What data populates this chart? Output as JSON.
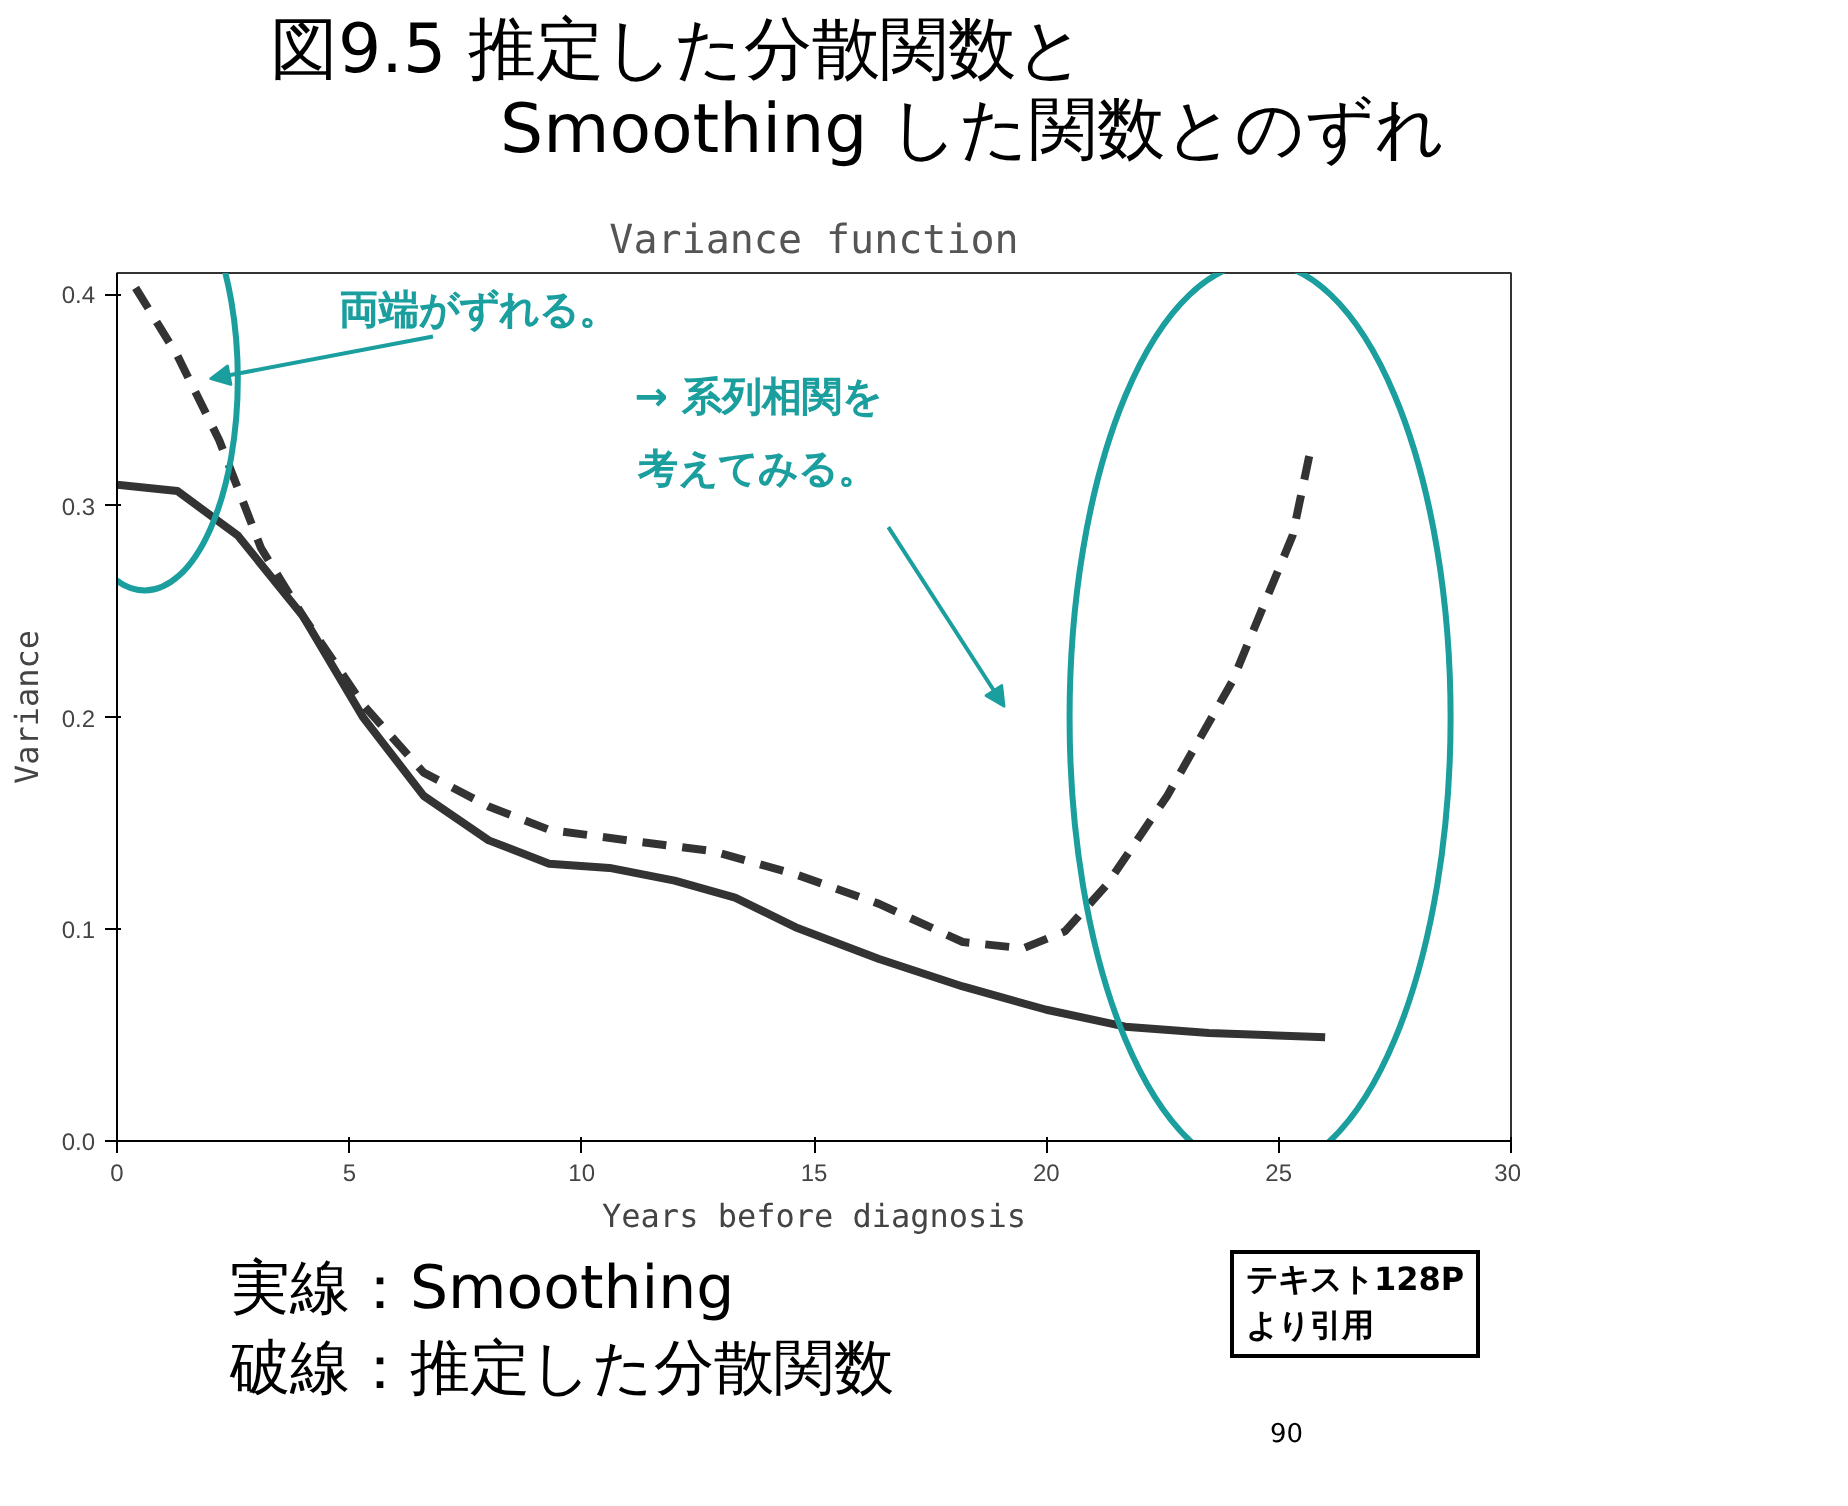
{
  "chart_data": {
    "type": "line",
    "title": "図9.5 推定した分散関数と\nSmoothing した関数とのずれ",
    "subtitle": "Variance function",
    "xlabel": "Years before diagnosis",
    "ylabel": "Variance",
    "xlim": [
      0,
      30
    ],
    "ylim": [
      0,
      0.41
    ],
    "xticks": [
      0,
      5,
      10,
      15,
      20,
      25,
      30
    ],
    "yticks": [
      {
        "value": 0,
        "label": "0.0"
      },
      0.1,
      0.2,
      0.3,
      0.4
    ],
    "grid": false,
    "marker": "none",
    "series": [
      {
        "color": "#333333",
        "line_style": "solid",
        "x": [
          0,
          1.3,
          2.6,
          4.0,
          5.3,
          6.6,
          8,
          9.3,
          10.6,
          12,
          13.3,
          14.6,
          16.4,
          18.2,
          20,
          21.7,
          23.5,
          26
        ],
        "values": [
          0.31,
          0.307,
          0.286,
          0.248,
          0.2,
          0.163,
          0.142,
          0.131,
          0.129,
          0.123,
          0.115,
          0.101,
          0.086,
          0.073,
          0.062,
          0.054,
          0.051,
          0.049
        ]
      },
      {
        "color": "#333333",
        "line_style": "dashed",
        "x": [
          0.4,
          1.3,
          2.2,
          3.1,
          4,
          5.3,
          6.6,
          8,
          9.3,
          11,
          12.8,
          14.6,
          16.4,
          18.2,
          19.5,
          20.4,
          21.3,
          22.6,
          24,
          25.3,
          25.7
        ],
        "values": [
          0.403,
          0.371,
          0.331,
          0.28,
          0.248,
          0.206,
          0.174,
          0.158,
          0.147,
          0.142,
          0.137,
          0.126,
          0.112,
          0.094,
          0.091,
          0.099,
          0.121,
          0.163,
          0.217,
          0.286,
          0.328
        ]
      }
    ],
    "annotations": [
      "両端がずれる。",
      "→ 系列相関を",
      "考えてみる。",
      "実線：Smoothing",
      "破線：推定した分散関数",
      "テキスト128P\nより引用",
      "90"
    ]
  }
}
